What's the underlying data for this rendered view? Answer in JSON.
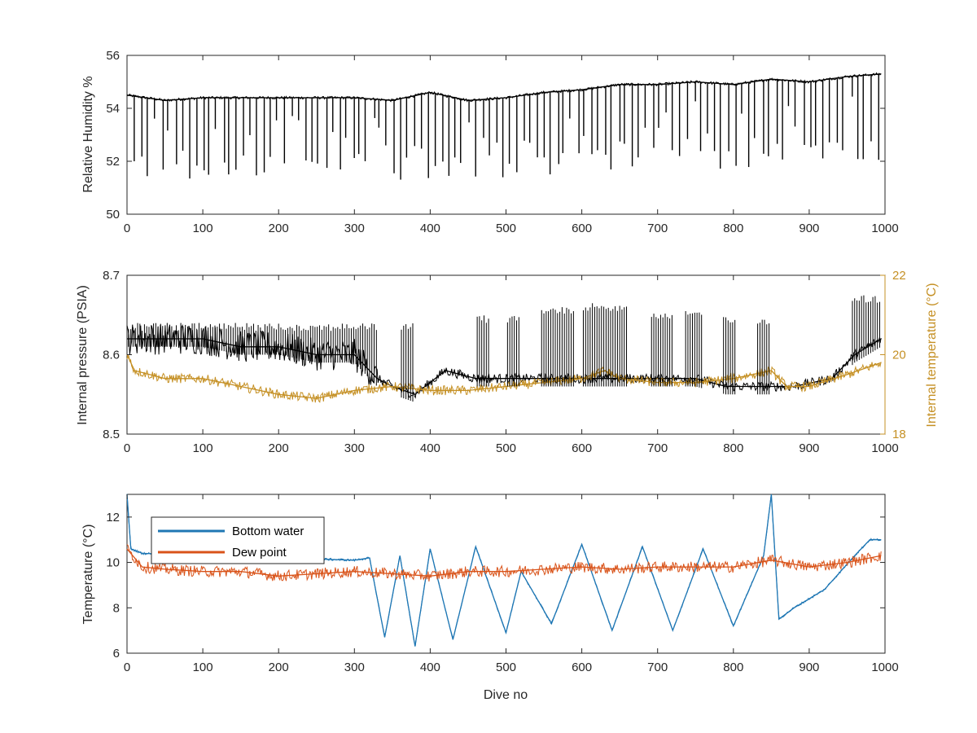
{
  "chart_data": [
    {
      "type": "line",
      "xlabel": "",
      "ylabel": "Relative Humidity %",
      "xlim": [
        0,
        1000
      ],
      "ylim": [
        50,
        56
      ],
      "xticks": [
        "0",
        "100",
        "200",
        "300",
        "400",
        "500",
        "600",
        "700",
        "800",
        "900",
        "1000"
      ],
      "yticks": [
        "50",
        "52",
        "54",
        "56"
      ],
      "series": [
        {
          "color": "#000000",
          "x": [
            0,
            50,
            100,
            150,
            200,
            250,
            300,
            350,
            400,
            450,
            500,
            550,
            600,
            650,
            700,
            750,
            800,
            850,
            900,
            950,
            995
          ],
          "y": [
            54.5,
            54.3,
            54.4,
            54.4,
            54.4,
            54.4,
            54.4,
            54.3,
            54.6,
            54.3,
            54.4,
            54.6,
            54.7,
            54.9,
            54.9,
            55.0,
            54.9,
            55.1,
            55.0,
            55.2,
            55.3
          ]
        }
      ],
      "dip_minimums": [
        51.4,
        51.3,
        51.4,
        51.4,
        51.3,
        51.4,
        51.3,
        51.2,
        51.4,
        51.2,
        51.4,
        51.4,
        51.6,
        51.8,
        52.0,
        51.6,
        51.7,
        51.9,
        51.9,
        52.0
      ]
    },
    {
      "type": "line",
      "xlabel": "",
      "ylabel": "Internal pressure (PSIA)",
      "ylabel_right": "Internal temperature (°C)",
      "right_axis_color": "#c59024",
      "xlim": [
        0,
        1000
      ],
      "ylim": [
        8.5,
        8.7
      ],
      "ylim_right": [
        18,
        22
      ],
      "xticks": [
        "0",
        "100",
        "200",
        "300",
        "400",
        "500",
        "600",
        "700",
        "800",
        "900",
        "1000"
      ],
      "yticks": [
        "8.5",
        "8.6",
        "8.7"
      ],
      "yticks_right": [
        "18",
        "20",
        "22"
      ],
      "series": [
        {
          "axis": "left",
          "color": "#000000",
          "x": [
            0,
            50,
            100,
            150,
            200,
            250,
            300,
            330,
            350,
            380,
            420,
            460,
            510,
            560,
            600,
            630,
            700,
            750,
            790,
            840,
            880,
            930,
            960,
            995
          ],
          "y": [
            8.62,
            8.62,
            8.62,
            8.61,
            8.61,
            8.6,
            8.6,
            8.57,
            8.56,
            8.55,
            8.58,
            8.57,
            8.57,
            8.57,
            8.57,
            8.57,
            8.57,
            8.57,
            8.56,
            8.56,
            8.56,
            8.57,
            8.6,
            8.62
          ]
        },
        {
          "axis": "right",
          "color": "#c59024",
          "x": [
            0,
            10,
            50,
            100,
            150,
            200,
            250,
            300,
            350,
            400,
            450,
            500,
            550,
            600,
            630,
            650,
            700,
            750,
            800,
            850,
            870,
            900,
            950,
            995
          ],
          "y": [
            20.0,
            19.6,
            19.4,
            19.4,
            19.2,
            19.0,
            18.9,
            19.1,
            19.2,
            19.1,
            19.1,
            19.2,
            19.3,
            19.4,
            19.6,
            19.4,
            19.3,
            19.3,
            19.4,
            19.6,
            19.2,
            19.2,
            19.5,
            19.8
          ]
        }
      ]
    },
    {
      "type": "line",
      "xlabel": "Dive no",
      "ylabel": "Temperature (°C)",
      "xlim": [
        0,
        1000
      ],
      "ylim": [
        6,
        13
      ],
      "xticks": [
        "0",
        "100",
        "200",
        "300",
        "400",
        "500",
        "600",
        "700",
        "800",
        "900",
        "1000"
      ],
      "yticks": [
        "6",
        "8",
        "10",
        "12"
      ],
      "legend_position": "top-left",
      "series": [
        {
          "name": "Bottom water",
          "color": "#1f77b4",
          "x": [
            0,
            5,
            20,
            100,
            200,
            300,
            320,
            340,
            360,
            380,
            400,
            430,
            460,
            500,
            520,
            560,
            600,
            640,
            680,
            720,
            760,
            800,
            840,
            850,
            860,
            880,
            920,
            960,
            980,
            995
          ],
          "y": [
            13.0,
            10.6,
            10.4,
            10.3,
            10.2,
            10.1,
            10.2,
            6.7,
            10.3,
            6.3,
            10.6,
            6.6,
            10.7,
            6.9,
            9.6,
            7.3,
            10.8,
            7.0,
            10.7,
            7.0,
            10.6,
            7.2,
            10.3,
            13.0,
            7.5,
            8.0,
            8.8,
            10.3,
            11.0,
            11.0
          ]
        },
        {
          "name": "Dew point",
          "color": "#d95319",
          "x": [
            0,
            20,
            50,
            100,
            150,
            200,
            250,
            300,
            350,
            400,
            450,
            500,
            550,
            600,
            650,
            700,
            750,
            800,
            850,
            900,
            950,
            995
          ],
          "y": [
            10.6,
            9.8,
            9.7,
            9.6,
            9.6,
            9.4,
            9.5,
            9.6,
            9.5,
            9.4,
            9.6,
            9.6,
            9.7,
            9.8,
            9.7,
            9.8,
            9.8,
            9.8,
            10.1,
            9.8,
            10.0,
            10.3
          ]
        }
      ]
    }
  ]
}
